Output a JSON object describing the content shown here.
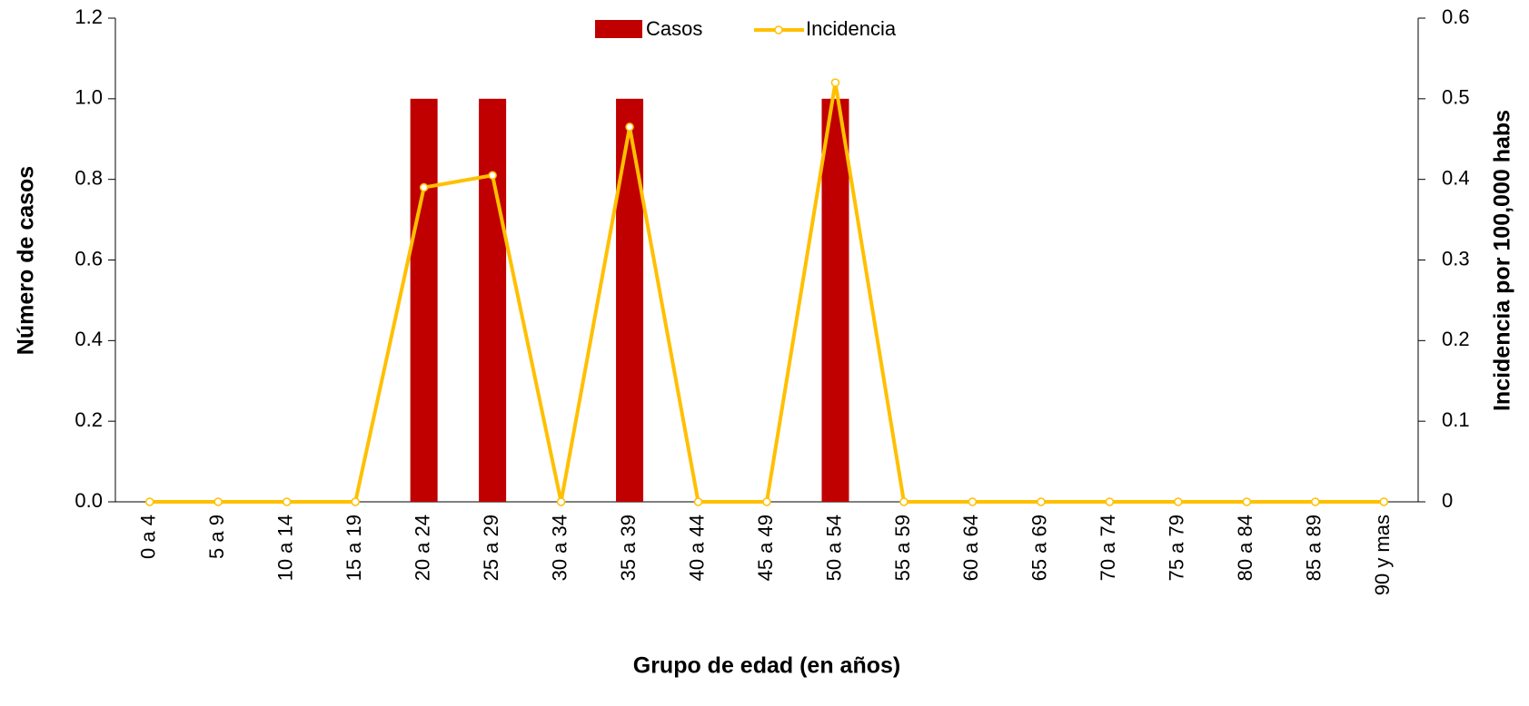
{
  "chart_data": {
    "type": "bar",
    "x_label": "Grupo de edad (en años)",
    "y_label": "Número de casos",
    "y2_label": "Incidencia por 100,000 habs",
    "categories": [
      "0 a 4",
      "5 a 9",
      "10 a 14",
      "15 a 19",
      "20 a 24",
      "25 a 29",
      "30 a 34",
      "35 a 39",
      "40 a 44",
      "45 a 49",
      "50 a 54",
      "55 a 59",
      "60 a 64",
      "65 a 69",
      "70 a 74",
      "75 a 79",
      "80 a 84",
      "85 a 89",
      "90 y mas"
    ],
    "series": [
      {
        "name": "Casos",
        "type": "bar",
        "color": "#c00000",
        "values": [
          0,
          0,
          0,
          0,
          1,
          1,
          0,
          1,
          0,
          0,
          1,
          0,
          0,
          0,
          0,
          0,
          0,
          0,
          0
        ]
      },
      {
        "name": "Incidencia",
        "type": "line",
        "axis": "y2",
        "color": "#ffc000",
        "values": [
          0,
          0,
          0,
          0,
          0.39,
          0.405,
          0,
          0.465,
          0,
          0,
          0.52,
          0,
          0,
          0,
          0,
          0,
          0,
          0,
          0
        ]
      }
    ],
    "ylim": [
      0,
      1.2
    ],
    "yticks": [
      {
        "value": 0,
        "label": "0.0"
      },
      0.2,
      0.4,
      0.6,
      0.8,
      {
        "value": 1,
        "label": "1.0"
      },
      1.2
    ],
    "y2lim": [
      0,
      0.6
    ],
    "y2ticks": [
      0,
      0.1,
      0.2,
      0.3,
      0.4,
      0.5,
      0.6
    ]
  }
}
